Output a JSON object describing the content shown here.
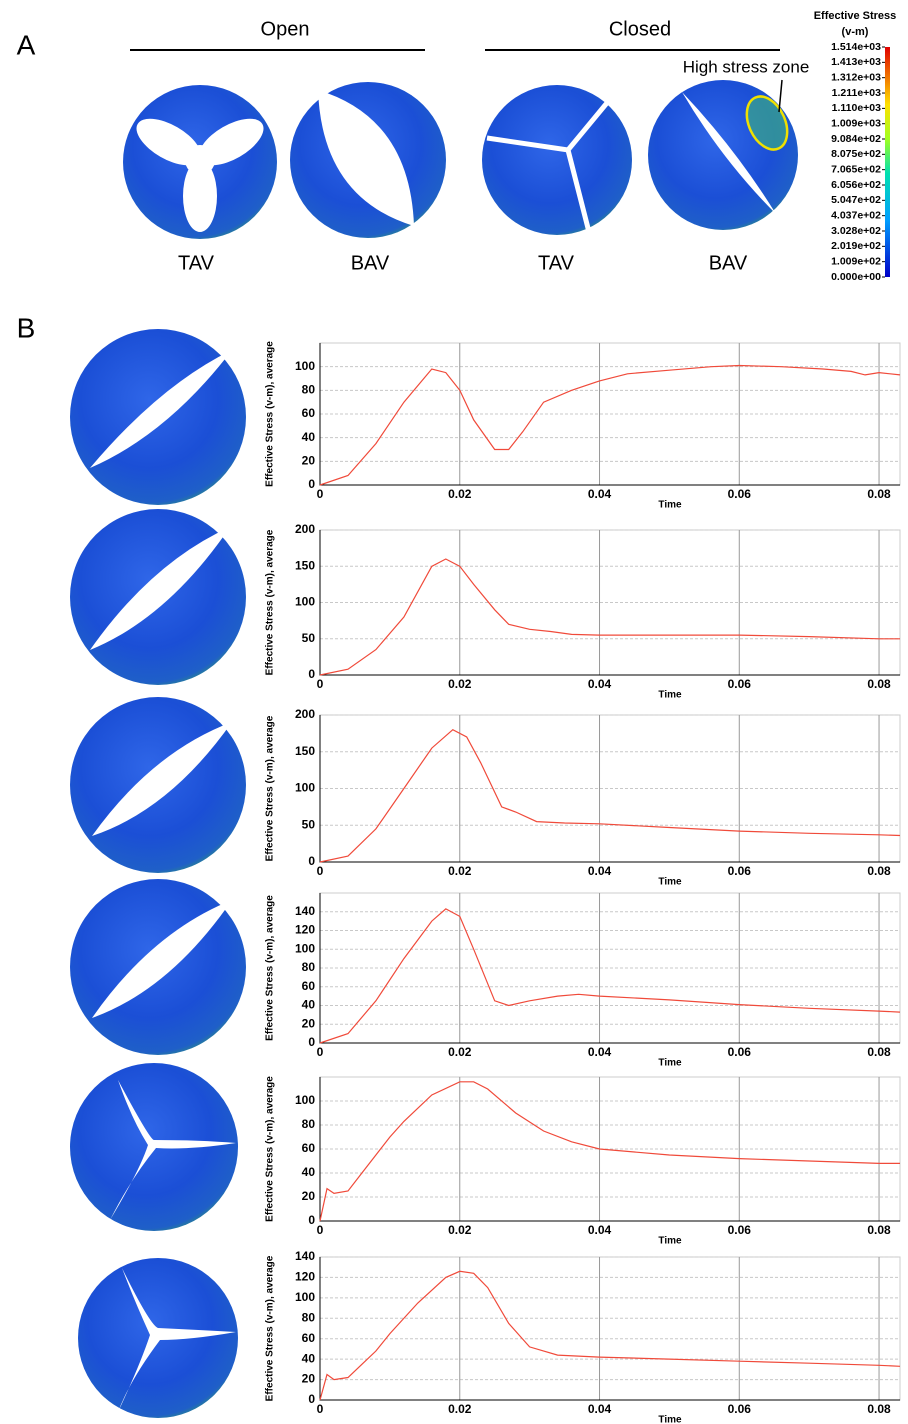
{
  "figure": {
    "panel_a": "A",
    "panel_b": "B",
    "open": "Open",
    "closed": "Closed",
    "valve_labels": [
      "TAV",
      "BAV",
      "TAV",
      "BAV"
    ],
    "annotation": "High stress zone",
    "colorbar_title": [
      "Effective Stress",
      "(v-m)"
    ],
    "colorbar_lim": [
      0,
      1514
    ],
    "colorbar_ticks": [
      {
        "value": 1514,
        "label": "1.514e+03"
      },
      {
        "value": 1413,
        "label": "1.413e+03"
      },
      {
        "value": 1312,
        "label": "1.312e+03"
      },
      {
        "value": 1211,
        "label": "1.211e+03"
      },
      {
        "value": 1110,
        "label": "1.110e+03"
      },
      {
        "value": 1009,
        "label": "1.009e+03"
      },
      {
        "value": 908.4,
        "label": "9.084e+02"
      },
      {
        "value": 807.5,
        "label": "8.075e+02"
      },
      {
        "value": 706.5,
        "label": "7.065e+02"
      },
      {
        "value": 605.6,
        "label": "6.056e+02"
      },
      {
        "value": 504.7,
        "label": "5.047e+02"
      },
      {
        "value": 403.7,
        "label": "4.037e+02"
      },
      {
        "value": 302.8,
        "label": "3.028e+02"
      },
      {
        "value": 201.9,
        "label": "2.019e+02"
      },
      {
        "value": 100.9,
        "label": "1.009e+02"
      },
      {
        "value": 0,
        "label": "0.000e+00"
      }
    ]
  },
  "chart_data": [
    {
      "type": "line",
      "x_label": "Time",
      "y_label": "Effective Stress (v-m), average",
      "color": "#f04a3a",
      "grid": true,
      "xlim": [
        0,
        0.083
      ],
      "xticks": [
        0,
        0.02,
        0.04,
        0.06,
        0.08
      ],
      "ylim": [
        0,
        120
      ],
      "yticks": [
        0,
        20,
        40,
        60,
        80,
        100
      ],
      "x": [
        0,
        0.004,
        0.008,
        0.012,
        0.016,
        0.018,
        0.02,
        0.022,
        0.025,
        0.027,
        0.029,
        0.032,
        0.036,
        0.04,
        0.044,
        0.05,
        0.056,
        0.06,
        0.066,
        0.072,
        0.076,
        0.078,
        0.08,
        0.083
      ],
      "values": [
        0,
        8,
        35,
        70,
        98,
        95,
        80,
        55,
        30,
        30,
        45,
        70,
        80,
        88,
        94,
        97,
        100,
        101,
        100,
        98,
        96,
        93,
        95,
        93
      ]
    },
    {
      "type": "line",
      "x_label": "Time",
      "y_label": "Effective Stress (v-m), average",
      "color": "#f04a3a",
      "grid": true,
      "xlim": [
        0,
        0.083
      ],
      "xticks": [
        0,
        0.02,
        0.04,
        0.06,
        0.08
      ],
      "ylim": [
        0,
        200
      ],
      "yticks": [
        0,
        50,
        100,
        150,
        200
      ],
      "x": [
        0,
        0.004,
        0.008,
        0.012,
        0.016,
        0.018,
        0.02,
        0.022,
        0.025,
        0.027,
        0.03,
        0.033,
        0.036,
        0.04,
        0.05,
        0.06,
        0.07,
        0.08,
        0.083
      ],
      "values": [
        0,
        8,
        35,
        80,
        150,
        160,
        150,
        125,
        90,
        70,
        63,
        60,
        56,
        55,
        55,
        55,
        53,
        50,
        50
      ]
    },
    {
      "type": "line",
      "x_label": "Time",
      "y_label": "Effective Stress (v-m), average",
      "color": "#f04a3a",
      "grid": true,
      "xlim": [
        0,
        0.083
      ],
      "xticks": [
        0,
        0.02,
        0.04,
        0.06,
        0.08
      ],
      "ylim": [
        0,
        200
      ],
      "yticks": [
        0,
        50,
        100,
        150,
        200
      ],
      "x": [
        0,
        0.004,
        0.008,
        0.012,
        0.016,
        0.019,
        0.021,
        0.023,
        0.026,
        0.028,
        0.031,
        0.035,
        0.04,
        0.05,
        0.06,
        0.07,
        0.08,
        0.083
      ],
      "values": [
        0,
        8,
        45,
        100,
        155,
        180,
        170,
        135,
        75,
        68,
        55,
        53,
        52,
        47,
        42,
        39,
        37,
        36
      ]
    },
    {
      "type": "line",
      "x_label": "Time",
      "y_label": "Effective Stress (v-m), average",
      "color": "#f04a3a",
      "grid": true,
      "xlim": [
        0,
        0.083
      ],
      "xticks": [
        0,
        0.02,
        0.04,
        0.06,
        0.08
      ],
      "ylim": [
        0,
        160
      ],
      "yticks": [
        0,
        20,
        40,
        60,
        80,
        100,
        120,
        140
      ],
      "x": [
        0,
        0.004,
        0.008,
        0.012,
        0.016,
        0.018,
        0.02,
        0.022,
        0.025,
        0.027,
        0.03,
        0.034,
        0.037,
        0.04,
        0.05,
        0.06,
        0.07,
        0.08,
        0.083
      ],
      "values": [
        0,
        10,
        45,
        90,
        130,
        143,
        135,
        100,
        45,
        40,
        45,
        50,
        52,
        50,
        46,
        41,
        37,
        34,
        33
      ]
    },
    {
      "type": "line",
      "x_label": "Time",
      "y_label": "Effective Stress (v-m), average",
      "color": "#f04a3a",
      "grid": true,
      "xlim": [
        0,
        0.083
      ],
      "xticks": [
        0,
        0.02,
        0.04,
        0.06,
        0.08
      ],
      "ylim": [
        0,
        120
      ],
      "yticks": [
        0,
        20,
        40,
        60,
        80,
        100
      ],
      "x": [
        0,
        0.001,
        0.002,
        0.004,
        0.006,
        0.008,
        0.01,
        0.012,
        0.016,
        0.02,
        0.022,
        0.024,
        0.028,
        0.032,
        0.036,
        0.04,
        0.05,
        0.06,
        0.07,
        0.08,
        0.083
      ],
      "values": [
        0,
        27,
        23,
        25,
        40,
        55,
        70,
        83,
        105,
        116,
        116,
        110,
        90,
        75,
        66,
        60,
        55,
        52,
        50,
        48,
        48
      ]
    },
    {
      "type": "line",
      "x_label": "Time",
      "y_label": "Effective Stress (v-m), average",
      "color": "#f04a3a",
      "grid": true,
      "xlim": [
        0,
        0.083
      ],
      "xticks": [
        0,
        0.02,
        0.04,
        0.06,
        0.08
      ],
      "ylim": [
        0,
        140
      ],
      "yticks": [
        0,
        20,
        40,
        60,
        80,
        100,
        120,
        140
      ],
      "x": [
        0,
        0.001,
        0.002,
        0.004,
        0.006,
        0.008,
        0.01,
        0.014,
        0.018,
        0.02,
        0.022,
        0.024,
        0.027,
        0.03,
        0.034,
        0.04,
        0.05,
        0.06,
        0.07,
        0.08,
        0.083
      ],
      "values": [
        0,
        25,
        20,
        22,
        35,
        48,
        65,
        95,
        120,
        126,
        124,
        110,
        75,
        52,
        44,
        42,
        40,
        38,
        36,
        34,
        33
      ]
    }
  ]
}
